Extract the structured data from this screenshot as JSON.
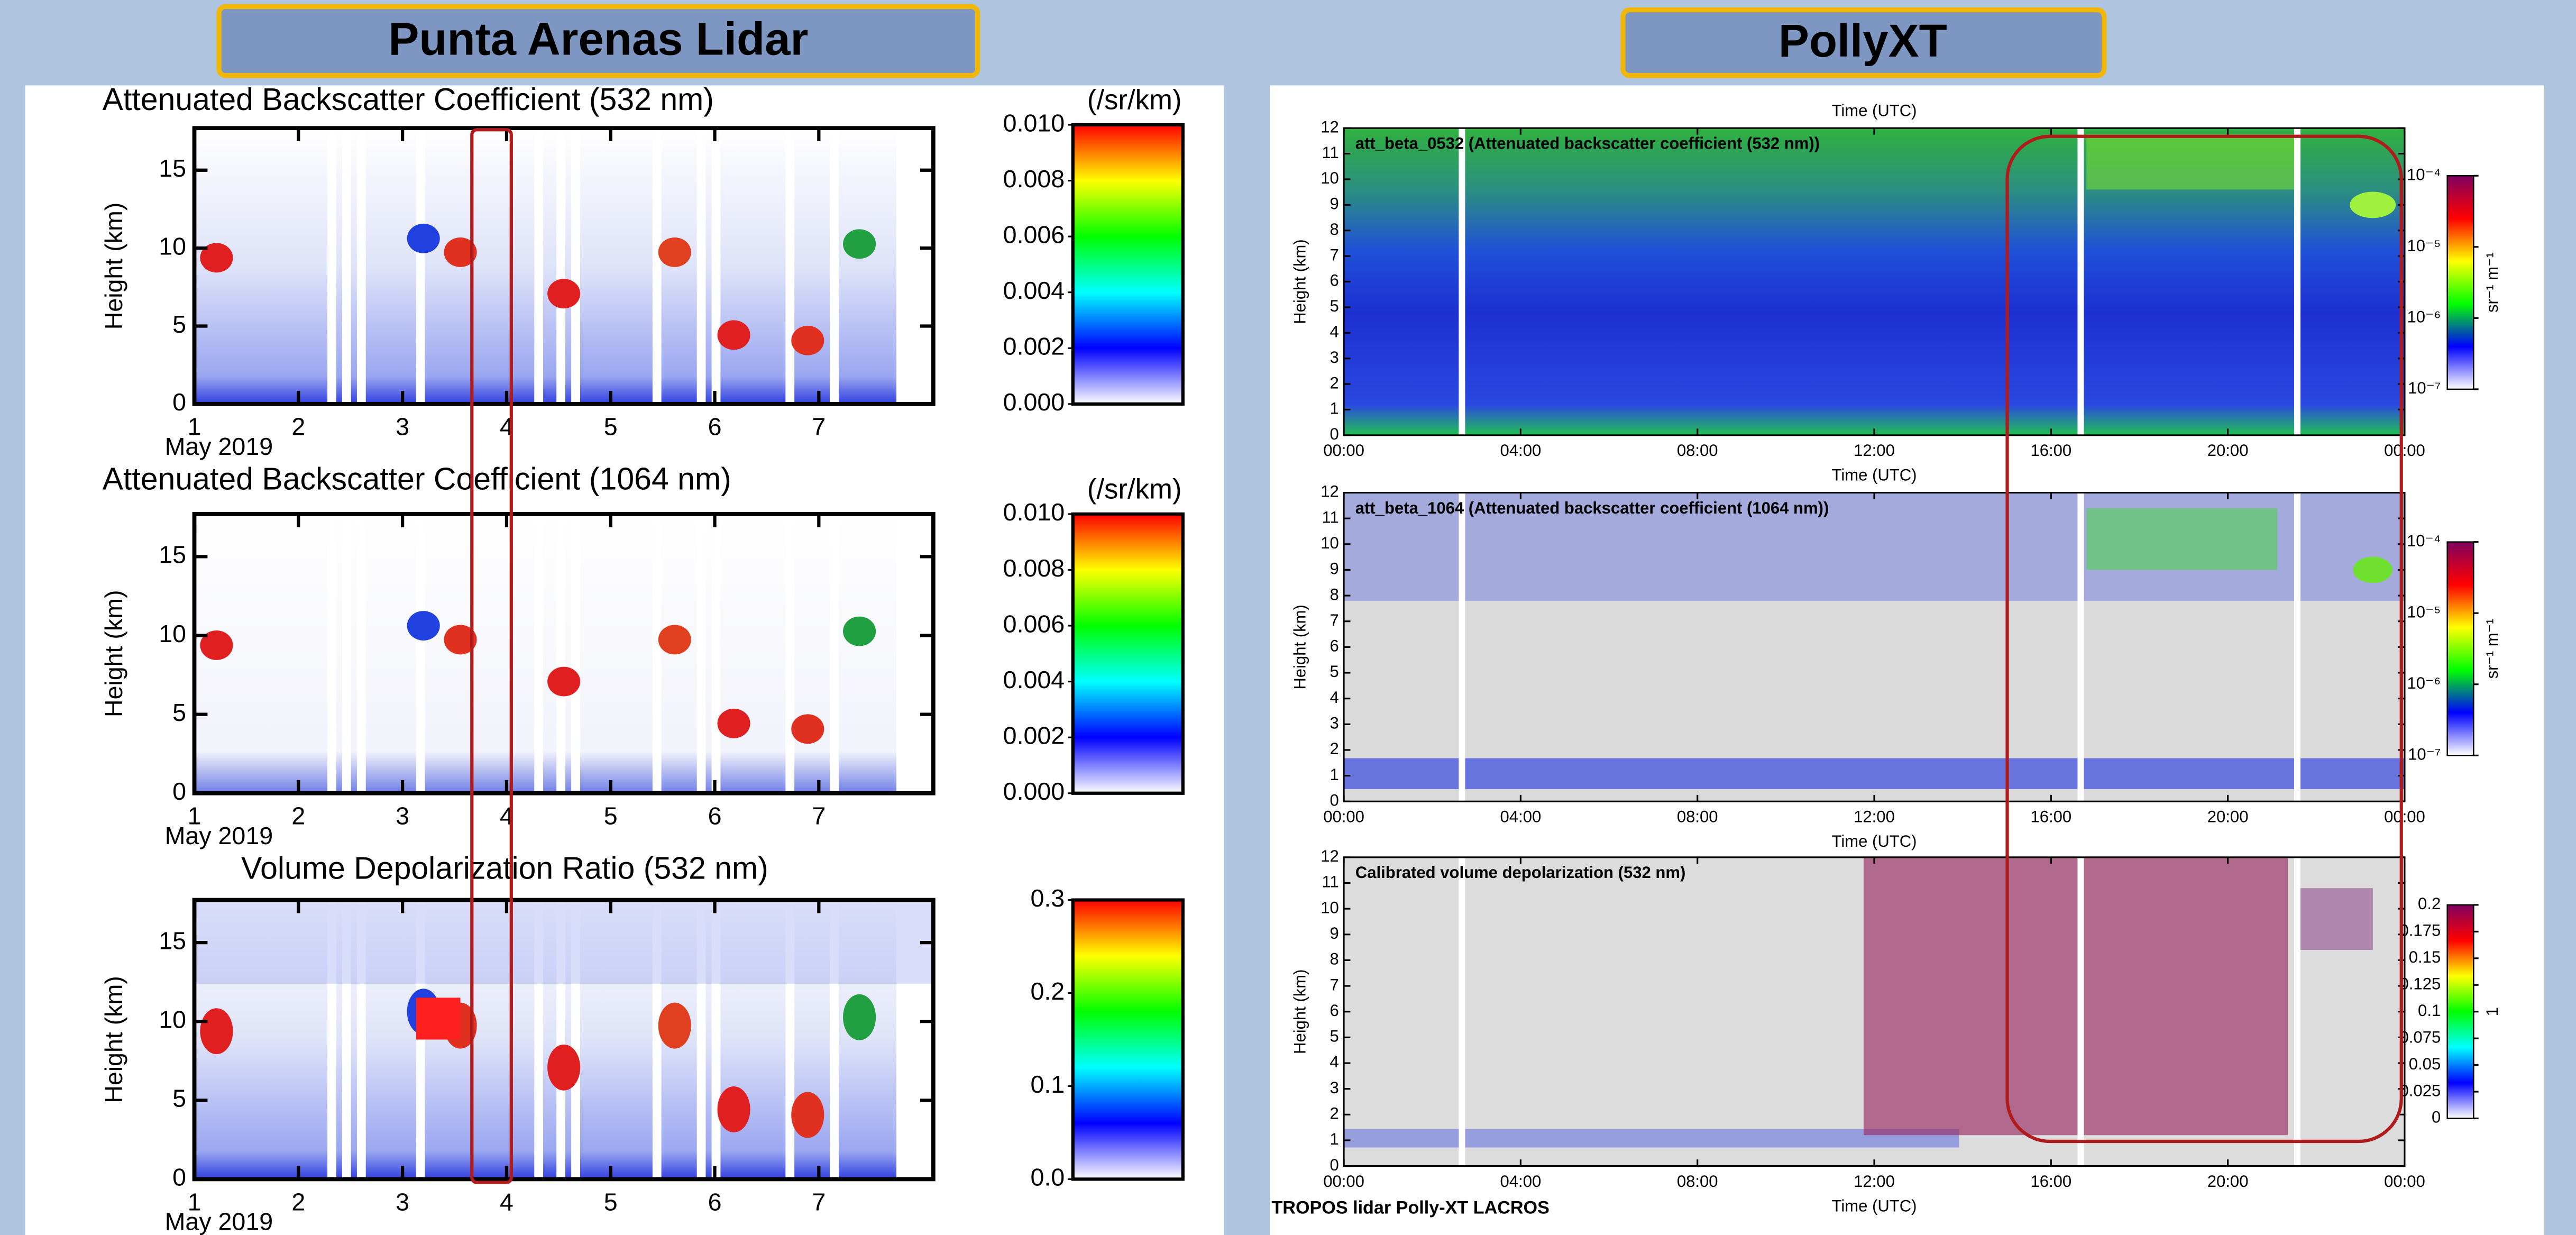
{
  "header": {
    "left_title": "Punta Arenas Lidar",
    "right_title": "PollyXT"
  },
  "footer": "TROPOS lidar Polly-XT LACROS",
  "chart_data": [
    {
      "type": "heatmap",
      "title": "Attenuated Backscatter Coefficient (532 nm)",
      "y_label": "Height (km)",
      "x_label_sub": "May 2019",
      "xlim": [
        1,
        8.1
      ],
      "xticks": [
        1,
        2,
        3,
        4,
        5,
        6,
        7
      ],
      "ylim": [
        0,
        17.7
      ],
      "yticks": [
        0,
        5,
        10,
        15
      ],
      "colorbar": {
        "label": "(/sr/km)",
        "lim": [
          0,
          0.01
        ],
        "colors": [
          "#ffffff",
          "#0000ff",
          "#00ffff",
          "#00ff00",
          "#ffff00",
          "#ff0000"
        ],
        "ticks": [
          {
            "value": 0,
            "label": "0.000"
          },
          {
            "value": 0.002,
            "label": "0.002"
          },
          {
            "value": 0.004,
            "label": "0.004"
          },
          {
            "value": 0.006,
            "label": "0.006"
          },
          {
            "value": 0.008,
            "label": "0.008"
          },
          {
            "value": 0.01,
            "label": "0.010"
          }
        ]
      }
    },
    {
      "type": "heatmap",
      "title": "Attenuated Backscatter Coefficient (1064 nm)",
      "y_label": "Height (km)",
      "x_label_sub": "May 2019",
      "xlim": [
        1,
        8.1
      ],
      "xticks": [
        1,
        2,
        3,
        4,
        5,
        6,
        7
      ],
      "ylim": [
        0,
        17.7
      ],
      "yticks": [
        0,
        5,
        10,
        15
      ],
      "colorbar": {
        "label": "(/sr/km)",
        "lim": [
          0,
          0.01
        ],
        "colors": [
          "#ffffff",
          "#0000ff",
          "#00ffff",
          "#00ff00",
          "#ffff00",
          "#ff0000"
        ],
        "ticks": [
          {
            "value": 0,
            "label": "0.000"
          },
          {
            "value": 0.002,
            "label": "0.002"
          },
          {
            "value": 0.004,
            "label": "0.004"
          },
          {
            "value": 0.006,
            "label": "0.006"
          },
          {
            "value": 0.008,
            "label": "0.008"
          },
          {
            "value": 0.01,
            "label": "0.010"
          }
        ]
      }
    },
    {
      "type": "heatmap",
      "title": "Volume Depolarization Ratio (532 nm)",
      "y_label": "Height (km)",
      "x_label_sub": "May 2019",
      "xlim": [
        1,
        8.1
      ],
      "xticks": [
        1,
        2,
        3,
        4,
        5,
        6,
        7
      ],
      "ylim": [
        0,
        17.7
      ],
      "yticks": [
        0,
        5,
        10,
        15
      ],
      "colorbar": {
        "lim": [
          0,
          0.3
        ],
        "colors": [
          "#ffffff",
          "#0000ff",
          "#00ffff",
          "#00ff00",
          "#ffff00",
          "#ff0000"
        ],
        "ticks": [
          {
            "value": 0,
            "label": "0.0"
          },
          0.1,
          0.2,
          0.3
        ]
      }
    },
    {
      "type": "heatmap",
      "title": "att_beta_0532 (Attenuated backscatter coefficient (532 nm))",
      "y_label": "Height (km)",
      "x_label_top": "Time (UTC)",
      "x_label": "Time (UTC)",
      "xlim": [
        0,
        24
      ],
      "xticks": [
        {
          "value": 0,
          "label": "00:00"
        },
        {
          "value": 4,
          "label": "04:00"
        },
        {
          "value": 8,
          "label": "08:00"
        },
        {
          "value": 12,
          "label": "12:00"
        },
        {
          "value": 16,
          "label": "16:00"
        },
        {
          "value": 20,
          "label": "20:00"
        },
        {
          "value": 24,
          "label": "00:00"
        }
      ],
      "ylim": [
        0,
        12
      ],
      "yticks": [
        0,
        1,
        2,
        3,
        4,
        5,
        6,
        7,
        8,
        9,
        10,
        11,
        12
      ],
      "colorbar": {
        "label": "sr⁻¹ m⁻¹",
        "log": true,
        "lim": [
          1e-07,
          0.0001
        ],
        "colors": [
          "#ffffff",
          "#0000ff",
          "#00ff00",
          "#ffff00",
          "#ff0000",
          "#800060"
        ],
        "ticks": [
          {
            "value": 1e-07,
            "label": "10⁻⁷"
          },
          {
            "value": 1e-06,
            "label": "10⁻⁶"
          },
          {
            "value": 1e-05,
            "label": "10⁻⁵"
          },
          {
            "value": 0.0001,
            "label": "10⁻⁴"
          }
        ]
      }
    },
    {
      "type": "heatmap",
      "title": "att_beta_1064 (Attenuated backscatter coefficient (1064 nm))",
      "y_label": "Height (km)",
      "x_label": "Time (UTC)",
      "xlim": [
        0,
        24
      ],
      "xticks": [
        {
          "value": 0,
          "label": "00:00"
        },
        {
          "value": 4,
          "label": "04:00"
        },
        {
          "value": 8,
          "label": "08:00"
        },
        {
          "value": 12,
          "label": "12:00"
        },
        {
          "value": 16,
          "label": "16:00"
        },
        {
          "value": 20,
          "label": "20:00"
        },
        {
          "value": 24,
          "label": "00:00"
        }
      ],
      "ylim": [
        0,
        12
      ],
      "yticks": [
        0,
        1,
        2,
        3,
        4,
        5,
        6,
        7,
        8,
        9,
        10,
        11,
        12
      ],
      "colorbar": {
        "label": "sr⁻¹ m⁻¹",
        "log": true,
        "lim": [
          1e-07,
          0.0001
        ],
        "colors": [
          "#ffffff",
          "#0000ff",
          "#00ff00",
          "#ffff00",
          "#ff0000",
          "#800060"
        ],
        "ticks": [
          {
            "value": 1e-07,
            "label": "10⁻⁷"
          },
          {
            "value": 1e-06,
            "label": "10⁻⁶"
          },
          {
            "value": 1e-05,
            "label": "10⁻⁵"
          },
          {
            "value": 0.0001,
            "label": "10⁻⁴"
          }
        ]
      }
    },
    {
      "type": "heatmap",
      "title": "Calibrated volume depolarization (532 nm)",
      "y_label": "Height (km)",
      "x_label": "Time (UTC)",
      "xlim": [
        0,
        24
      ],
      "xticks": [
        {
          "value": 0,
          "label": "00:00"
        },
        {
          "value": 4,
          "label": "04:00"
        },
        {
          "value": 8,
          "label": "08:00"
        },
        {
          "value": 12,
          "label": "12:00"
        },
        {
          "value": 16,
          "label": "16:00"
        },
        {
          "value": 20,
          "label": "20:00"
        },
        {
          "value": 24,
          "label": "00:00"
        }
      ],
      "ylim": [
        0,
        12
      ],
      "yticks": [
        0,
        1,
        2,
        3,
        4,
        5,
        6,
        7,
        8,
        9,
        10,
        11,
        12
      ],
      "colorbar": {
        "label": "1",
        "lim": [
          0,
          0.2
        ],
        "colors": [
          "#ffffff",
          "#0000ff",
          "#00ffff",
          "#00ff00",
          "#ffff00",
          "#ff0000",
          "#800060"
        ],
        "ticks": [
          0,
          0.025,
          0.05,
          0.075,
          0.1,
          0.125,
          0.15,
          0.175,
          0.2
        ]
      }
    }
  ]
}
